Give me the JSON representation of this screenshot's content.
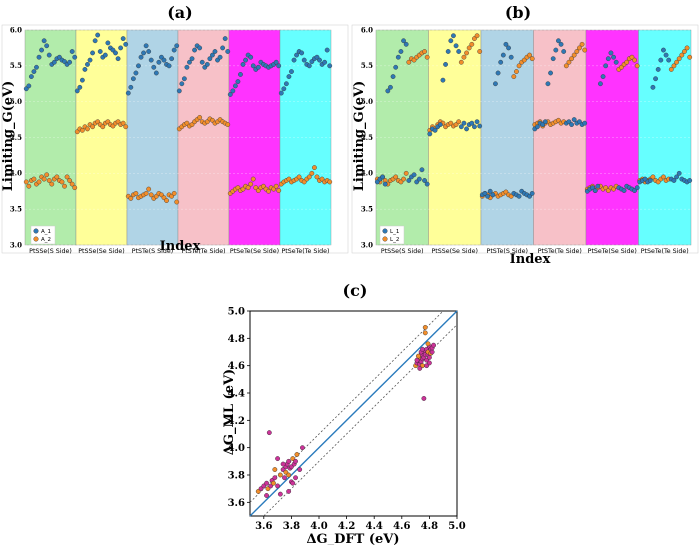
{
  "colors": {
    "series1": "#2e78b5",
    "series2": "#f28e2b",
    "parity_points": "#cc3399",
    "parity_line": "#2a7bbd",
    "bands": [
      "#b2ecab",
      "#ffff99",
      "#b0d4e6",
      "#f7c1c8",
      "#ff33ff",
      "#66ffff"
    ]
  },
  "chart_data": [
    {
      "id": "a",
      "panel_label": "(a)",
      "type": "scatter",
      "xlabel": "Index",
      "ylabel": "Limiting_G(eV)",
      "ylim": [
        3.0,
        6.0
      ],
      "yticks": [
        "3.0",
        "3.5",
        "4.0",
        "4.5",
        "5.0",
        "5.5",
        "6.0"
      ],
      "categories": [
        "PtSSe(S Side)",
        "PtSSe(Se Side)",
        "PtSTe(S Side)",
        "PtSTe(Te Side)",
        "PtSeTe(Se Side)",
        "PtSeTe(Te Side)"
      ],
      "legend": {
        "placement": "lower-left",
        "entries": [
          "A_1",
          "A_2"
        ]
      },
      "series": [
        {
          "name": "A_1",
          "values": [
            [
              5.18,
              5.22,
              5.35,
              5.42,
              5.48,
              5.62,
              5.72,
              5.85,
              5.78,
              5.65,
              5.52,
              5.55,
              5.6,
              5.62,
              5.58,
              5.56,
              5.52,
              5.55,
              5.7,
              5.62
            ],
            [
              5.15,
              5.2,
              5.3,
              5.45,
              5.52,
              5.58,
              5.68,
              5.85,
              5.93,
              5.7,
              5.62,
              5.65,
              5.82,
              5.75,
              5.72,
              5.68,
              5.6,
              5.75,
              5.88,
              5.8
            ],
            [
              5.12,
              5.2,
              5.32,
              5.4,
              5.5,
              5.62,
              5.68,
              5.78,
              5.7,
              5.58,
              5.48,
              5.4,
              5.55,
              5.62,
              5.58,
              5.52,
              5.5,
              5.6,
              5.72,
              5.78
            ],
            [
              5.15,
              5.25,
              5.32,
              5.48,
              5.55,
              5.6,
              5.72,
              5.78,
              5.75,
              5.55,
              5.48,
              5.52,
              5.6,
              5.65,
              5.7,
              5.58,
              5.62,
              5.75,
              5.88,
              5.7
            ],
            [
              5.1,
              5.15,
              5.22,
              5.28,
              5.38,
              5.52,
              5.58,
              5.65,
              5.62,
              5.5,
              5.45,
              5.48,
              5.55,
              5.52,
              5.5,
              5.48,
              5.5,
              5.52,
              5.55,
              5.5
            ],
            [
              5.12,
              5.18,
              5.25,
              5.35,
              5.42,
              5.58,
              5.65,
              5.7,
              5.68,
              5.58,
              5.52,
              5.5,
              5.56,
              5.6,
              5.62,
              5.58,
              5.52,
              5.55,
              5.72,
              5.5
            ]
          ]
        },
        {
          "name": "A_2",
          "values": [
            [
              3.88,
              3.82,
              3.9,
              3.92,
              3.85,
              3.88,
              3.95,
              3.92,
              3.98,
              3.9,
              3.85,
              3.92,
              3.95,
              3.9,
              3.88,
              3.82,
              3.95,
              3.9,
              3.85,
              3.8
            ],
            [
              4.58,
              4.62,
              4.6,
              4.65,
              4.62,
              4.68,
              4.65,
              4.7,
              4.72,
              4.68,
              4.65,
              4.7,
              4.72,
              4.68,
              4.66,
              4.7,
              4.72,
              4.68,
              4.7,
              4.65
            ],
            [
              3.68,
              3.65,
              3.7,
              3.72,
              3.66,
              3.68,
              3.7,
              3.72,
              3.78,
              3.7,
              3.65,
              3.68,
              3.72,
              3.7,
              3.66,
              3.62,
              3.7,
              3.68,
              3.72,
              3.6
            ],
            [
              4.62,
              4.65,
              4.68,
              4.7,
              4.66,
              4.68,
              4.72,
              4.75,
              4.78,
              4.72,
              4.7,
              4.72,
              4.76,
              4.74,
              4.7,
              4.72,
              4.75,
              4.72,
              4.7,
              4.68
            ],
            [
              3.72,
              3.75,
              3.78,
              3.8,
              3.76,
              3.78,
              3.82,
              3.8,
              3.85,
              3.92,
              3.8,
              3.76,
              3.8,
              3.82,
              3.78,
              3.75,
              3.8,
              3.78,
              3.82,
              3.76
            ],
            [
              3.85,
              3.88,
              3.9,
              3.92,
              3.88,
              3.9,
              3.92,
              3.95,
              3.9,
              3.88,
              3.92,
              3.95,
              4.0,
              4.08,
              3.95,
              3.9,
              3.92,
              3.88,
              3.9,
              3.88
            ]
          ]
        }
      ]
    },
    {
      "id": "b",
      "panel_label": "(b)",
      "type": "scatter",
      "xlabel": "Index",
      "ylabel": "Limiting_G(eV)",
      "ylim": [
        3.0,
        6.0
      ],
      "yticks": [
        "3.0",
        "3.5",
        "4.0",
        "4.5",
        "5.0",
        "5.5",
        "6.0"
      ],
      "categories": [
        "PtSSe(S Side)",
        "PtSSe(Se Side)",
        "PtSTe(S Side)",
        "PtSTe(Te Side)",
        "PtSeTe(Se Side)",
        "PtSeTe(Te Side)"
      ],
      "legend": {
        "placement": "lower-left",
        "entries": [
          "L_1",
          "L_2"
        ]
      },
      "series": [
        {
          "name": "L_1",
          "values": [
            [
              3.88,
              3.92,
              3.95,
              3.85,
              5.15,
              5.2,
              5.35,
              5.48,
              5.62,
              5.7,
              5.85,
              5.8,
              3.9,
              3.95,
              3.98,
              3.88,
              3.92,
              4.05,
              3.9,
              3.85
            ],
            [
              4.55,
              4.62,
              4.6,
              4.65,
              4.68,
              5.3,
              5.52,
              5.7,
              5.85,
              5.92,
              5.78,
              5.7,
              4.65,
              4.7,
              4.62,
              4.68,
              4.7,
              4.65,
              4.72,
              4.66
            ],
            [
              3.7,
              3.72,
              3.68,
              3.75,
              3.7,
              5.25,
              5.4,
              5.55,
              5.65,
              5.8,
              5.75,
              5.62,
              3.72,
              3.7,
              3.68,
              3.75,
              3.72,
              3.7,
              3.68,
              3.72
            ],
            [
              4.62,
              4.65,
              4.7,
              4.68,
              4.72,
              5.25,
              5.4,
              5.6,
              5.72,
              5.85,
              5.8,
              5.7,
              4.7,
              4.72,
              4.68,
              4.75,
              4.7,
              4.72,
              4.68,
              4.7
            ],
            [
              3.75,
              3.78,
              3.8,
              3.76,
              3.82,
              5.25,
              5.35,
              5.5,
              5.6,
              5.68,
              5.62,
              5.55,
              3.8,
              3.78,
              3.76,
              3.82,
              3.8,
              3.78,
              3.76,
              3.8
            ],
            [
              3.88,
              3.9,
              3.92,
              3.88,
              3.9,
              5.2,
              5.32,
              5.45,
              5.58,
              5.72,
              5.65,
              5.58,
              3.92,
              3.9,
              3.95,
              4.0,
              3.92,
              3.9,
              3.88,
              3.9
            ]
          ]
        },
        {
          "name": "L_2",
          "values": [
            [
              3.92,
              3.88,
              3.95,
              3.9,
              3.85,
              3.9,
              3.92,
              3.95,
              3.9,
              3.88,
              3.92,
              4.0,
              5.55,
              5.6,
              5.58,
              5.62,
              5.65,
              5.68,
              5.7,
              5.62
            ],
            [
              4.6,
              4.65,
              4.62,
              4.68,
              4.72,
              4.7,
              4.65,
              4.68,
              4.7,
              4.66,
              4.68,
              4.72,
              5.55,
              5.62,
              5.68,
              5.75,
              5.8,
              5.88,
              5.92,
              5.7
            ],
            [
              3.68,
              3.72,
              3.7,
              3.66,
              3.7,
              3.72,
              3.68,
              3.7,
              3.72,
              3.74,
              3.7,
              3.68,
              5.35,
              5.42,
              5.5,
              5.55,
              5.58,
              5.62,
              5.65,
              5.6
            ],
            [
              4.68,
              4.7,
              4.72,
              4.66,
              4.7,
              4.72,
              4.68,
              4.7,
              4.72,
              4.74,
              4.7,
              4.72,
              5.5,
              5.55,
              5.6,
              5.65,
              5.7,
              5.75,
              5.8,
              5.72
            ],
            [
              3.78,
              3.8,
              3.82,
              3.76,
              3.8,
              3.82,
              3.78,
              3.8,
              3.76,
              3.8,
              3.78,
              3.82,
              5.45,
              5.48,
              5.52,
              5.55,
              5.6,
              5.62,
              5.58,
              5.5
            ],
            [
              3.9,
              3.92,
              3.88,
              3.9,
              3.92,
              3.95,
              3.9,
              3.88,
              3.92,
              3.95,
              3.9,
              3.92,
              5.45,
              5.5,
              5.55,
              5.6,
              5.65,
              5.7,
              5.75,
              5.62
            ]
          ]
        }
      ]
    },
    {
      "id": "c",
      "panel_label": "(c)",
      "type": "scatter",
      "xlabel": "ΔG_DFT (eV)",
      "ylabel": "ΔG_ML (eV)",
      "xlim": [
        3.5,
        5.0
      ],
      "ylim": [
        3.5,
        5.0
      ],
      "xticks": [
        "3.6",
        "3.8",
        "4.0",
        "4.2",
        "4.4",
        "4.6",
        "4.8",
        "5.0"
      ],
      "yticks": [
        "3.6",
        "3.8",
        "4.0",
        "4.2",
        "4.4",
        "4.6",
        "4.8",
        "5.0"
      ],
      "parity_band": 0.1,
      "points": [
        [
          3.56,
          3.68
        ],
        [
          3.58,
          3.7
        ],
        [
          3.6,
          3.72
        ],
        [
          3.62,
          3.74
        ],
        [
          3.63,
          3.7
        ],
        [
          3.64,
          4.11
        ],
        [
          3.65,
          3.72
        ],
        [
          3.66,
          3.76
        ],
        [
          3.67,
          3.74
        ],
        [
          3.68,
          3.78
        ],
        [
          3.7,
          3.72
        ],
        [
          3.7,
          3.92
        ],
        [
          3.72,
          3.8
        ],
        [
          3.72,
          3.66
        ],
        [
          3.74,
          3.84
        ],
        [
          3.75,
          3.78
        ],
        [
          3.76,
          3.82
        ],
        [
          3.76,
          3.86
        ],
        [
          3.77,
          3.88
        ],
        [
          3.78,
          3.9
        ],
        [
          3.78,
          3.8
        ],
        [
          3.79,
          3.85
        ],
        [
          3.8,
          3.86
        ],
        [
          3.8,
          3.75
        ],
        [
          3.81,
          3.92
        ],
        [
          3.81,
          3.74
        ],
        [
          3.82,
          3.88
        ],
        [
          3.83,
          3.9
        ],
        [
          3.84,
          3.95
        ],
        [
          3.78,
          3.68
        ],
        [
          3.88,
          4.0
        ],
        [
          3.62,
          3.65
        ],
        [
          3.68,
          3.84
        ],
        [
          3.74,
          3.88
        ],
        [
          3.83,
          3.78
        ],
        [
          3.86,
          3.84
        ],
        [
          4.7,
          4.6
        ],
        [
          4.71,
          4.62
        ],
        [
          4.72,
          4.64
        ],
        [
          4.73,
          4.61
        ],
        [
          4.73,
          4.66
        ],
        [
          4.74,
          4.63
        ],
        [
          4.74,
          4.68
        ],
        [
          4.75,
          4.65
        ],
        [
          4.75,
          4.6
        ],
        [
          4.76,
          4.66
        ],
        [
          4.76,
          4.7
        ],
        [
          4.77,
          4.68
        ],
        [
          4.77,
          4.88
        ],
        [
          4.78,
          4.64
        ],
        [
          4.78,
          4.72
        ],
        [
          4.79,
          4.68
        ],
        [
          4.79,
          4.7
        ],
        [
          4.8,
          4.66
        ],
        [
          4.8,
          4.74
        ],
        [
          4.81,
          4.72
        ],
        [
          4.81,
          4.69
        ],
        [
          4.82,
          4.7
        ],
        [
          4.82,
          4.73
        ],
        [
          4.76,
          4.36
        ],
        [
          4.72,
          4.67
        ],
        [
          4.74,
          4.7
        ],
        [
          4.78,
          4.6
        ],
        [
          4.8,
          4.62
        ],
        [
          4.77,
          4.84
        ],
        [
          4.83,
          4.75
        ],
        [
          4.71,
          4.64
        ],
        [
          4.75,
          4.72
        ],
        [
          4.79,
          4.76
        ],
        [
          4.73,
          4.58
        ]
      ]
    }
  ]
}
